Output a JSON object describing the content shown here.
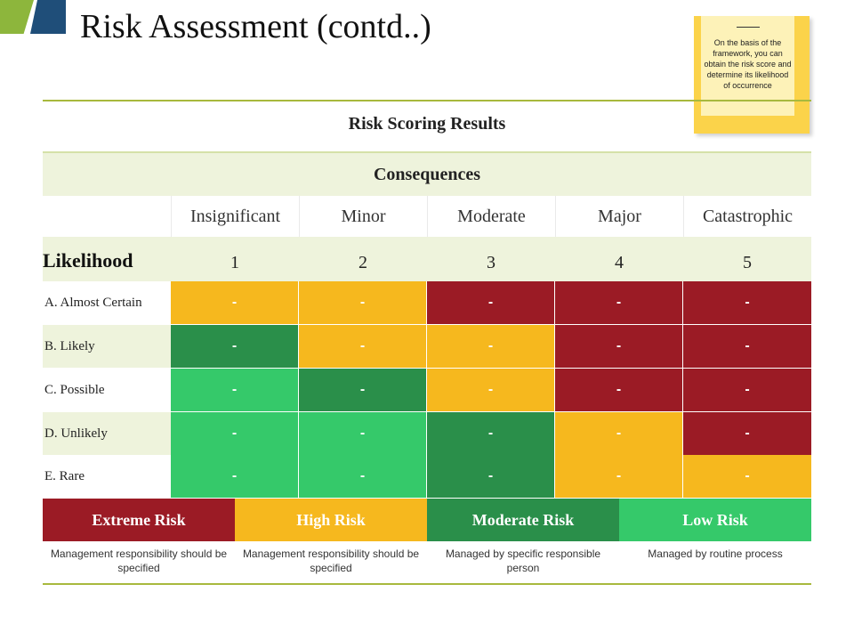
{
  "page": {
    "title": "Risk Assessment (contd..)"
  },
  "note": {
    "text": "On the basis of the framework, you can obtain the risk score and determine its likelihood of occurrence"
  },
  "table": {
    "caption": "Risk Scoring Results",
    "consequences_label": "Consequences",
    "likelihood_label": "Likelihood",
    "consequences": [
      "Insignificant",
      "Minor",
      "Moderate",
      "Major",
      "Catastrophic"
    ],
    "scores": [
      "1",
      "2",
      "3",
      "4",
      "5"
    ],
    "rows": [
      {
        "label": "A. Almost Certain",
        "cells": [
          "-",
          "-",
          "-",
          "-",
          "-"
        ],
        "levels": [
          "high",
          "high",
          "extreme",
          "extreme",
          "extreme"
        ]
      },
      {
        "label": "B. Likely",
        "cells": [
          "-",
          "-",
          "-",
          "-",
          "-"
        ],
        "levels": [
          "moderate",
          "high",
          "high",
          "extreme",
          "extreme"
        ]
      },
      {
        "label": "C. Possible",
        "cells": [
          "-",
          "-",
          "-",
          "-",
          "-"
        ],
        "levels": [
          "low",
          "moderate",
          "high",
          "extreme",
          "extreme"
        ]
      },
      {
        "label": "D. Unlikely",
        "cells": [
          "-",
          "-",
          "-",
          "-",
          "-"
        ],
        "levels": [
          "low",
          "low",
          "moderate",
          "high",
          "extreme"
        ]
      },
      {
        "label": "E. Rare",
        "cells": [
          "-",
          "-",
          "-",
          "-",
          "-"
        ],
        "levels": [
          "low",
          "low",
          "moderate",
          "high",
          "high"
        ]
      }
    ]
  },
  "legend": [
    {
      "key": "extreme",
      "label": "Extreme Risk",
      "color": "#9b1b25",
      "description": "Management responsibility should be specified"
    },
    {
      "key": "high",
      "label": "High Risk",
      "color": "#f6b81e",
      "description": "Management responsibility should be specified"
    },
    {
      "key": "moderate",
      "label": "Moderate Risk",
      "color": "#2a8f4a",
      "description": "Managed by specific responsible person"
    },
    {
      "key": "low",
      "label": "Low Risk",
      "color": "#35c96a",
      "description": "Managed by routine process"
    }
  ],
  "colors": {
    "accent_line": "#a8b93d",
    "tint": "#eef3dc"
  }
}
